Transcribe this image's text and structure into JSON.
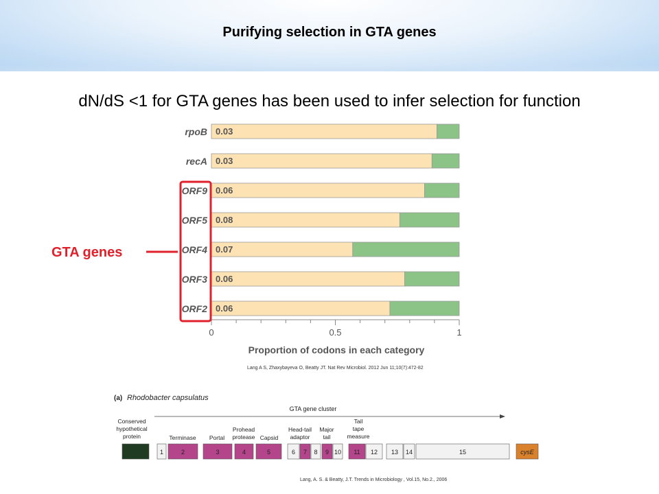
{
  "slide": {
    "title": "Purifying selection in GTA genes",
    "subtitle": "dN/dS <1 for GTA genes has been used to infer  selection for function",
    "gta_label": "GTA genes",
    "citation_top": "Lang A S, Zhaxybayeva O, Beatty JT. Nat Rev Microbiol. 2012 Jun 11;10(7):472-82",
    "citation_bottom": "Lang, A. S. & Beatty, J.T.  Trends in Microbiology , Vol.15, No.2., 2006"
  },
  "colors": {
    "bar_primary": "#fde3b4",
    "bar_secondary": "#8cc387",
    "bar_border": "#999999",
    "highlight": "#e0202a",
    "magenta": "#b5458a",
    "dark_green": "#1f3b22",
    "orange": "#d9822b",
    "gray_gene": "#f2f2f2"
  },
  "chart_data": [
    {
      "type": "bar",
      "orientation": "horizontal",
      "stacked": true,
      "categories": [
        "rpoB",
        "recA",
        "ORF9",
        "ORF5",
        "ORF4",
        "ORF3",
        "ORF2"
      ],
      "bar_labels": [
        "0.03",
        "0.03",
        "0.06",
        "0.08",
        "0.07",
        "0.06",
        "0.06"
      ],
      "series": [
        {
          "values": [
            0.91,
            0.89,
            0.86,
            0.76,
            0.57,
            0.78,
            0.72
          ],
          "color": "#fde3b4"
        },
        {
          "values": [
            0.09,
            0.11,
            0.14,
            0.24,
            0.43,
            0.22,
            0.28
          ],
          "color": "#8cc387"
        }
      ],
      "xlabel": "Proportion of codons in each category",
      "xlim": [
        0,
        1
      ],
      "xticks": [
        "0",
        "0.5",
        "1"
      ],
      "highlighted_categories": [
        "ORF9",
        "ORF5",
        "ORF4",
        "ORF3",
        "ORF2"
      ]
    }
  ],
  "gene_map": {
    "panel_label": "(a)",
    "organism": "Rhodobacter capsulatus",
    "cluster_label": "GTA gene cluster",
    "annotations": [
      "Conserved hypothetical protein",
      "Terminase",
      "Portal",
      "Prohead protease",
      "Capsid",
      "Head-tail adaptor",
      "Major tail",
      "Tail tape measure"
    ],
    "genes": [
      {
        "label": "",
        "color": "#1f3b22"
      },
      {
        "label": "1",
        "color": "#f2f2f2"
      },
      {
        "label": "2",
        "color": "#b5458a"
      },
      {
        "label": "3",
        "color": "#b5458a"
      },
      {
        "label": "4",
        "color": "#b5458a"
      },
      {
        "label": "5",
        "color": "#b5458a"
      },
      {
        "label": "6",
        "color": "#f2f2f2"
      },
      {
        "label": "7",
        "color": "#b5458a"
      },
      {
        "label": "8",
        "color": "#f2f2f2"
      },
      {
        "label": "9",
        "color": "#b5458a"
      },
      {
        "label": "10",
        "color": "#f2f2f2"
      },
      {
        "label": "11",
        "color": "#b5458a"
      },
      {
        "label": "12",
        "color": "#f2f2f2"
      },
      {
        "label": "13",
        "color": "#f2f2f2"
      },
      {
        "label": "14",
        "color": "#f2f2f2"
      },
      {
        "label": "15",
        "color": "#f2f2f2"
      },
      {
        "label": "cysE",
        "color": "#d9822b"
      }
    ]
  }
}
